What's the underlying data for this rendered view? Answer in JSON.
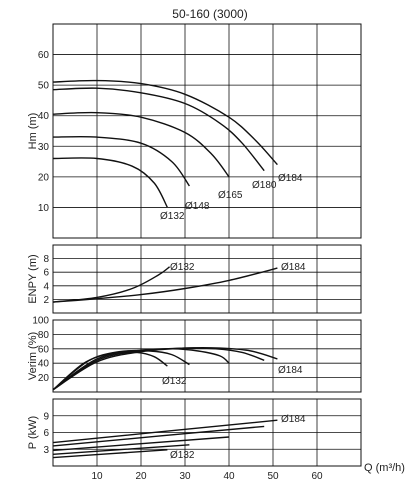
{
  "chart_data": {
    "type": "line",
    "title": "50-160 (3000)",
    "x_label": "Q (m³/h)",
    "x_ticks": [
      "10",
      "20",
      "30",
      "40",
      "50",
      "60"
    ],
    "xlim": [
      0,
      70
    ],
    "panels": [
      {
        "id": "head",
        "ylabel": "Hm (m)",
        "ylim": [
          0,
          70
        ],
        "yticks": [
          10,
          20,
          30,
          40,
          50,
          60
        ],
        "series": [
          {
            "name": "Ø184",
            "x": [
              0,
              10,
              20,
              30,
              40,
              46,
              51
            ],
            "y": [
              51,
              51.5,
              50.5,
              47,
              39.5,
              32,
              24
            ]
          },
          {
            "name": "Ø180",
            "x": [
              0,
              10,
              20,
              30,
              38,
              43,
              48
            ],
            "y": [
              48.5,
              49,
              47.5,
              44,
              37.5,
              31,
              22
            ]
          },
          {
            "name": "Ø165",
            "x": [
              0,
              10,
              20,
              30,
              36,
              40
            ],
            "y": [
              40.5,
              41,
              39.5,
              34.5,
              27.5,
              20
            ]
          },
          {
            "name": "Ø148",
            "x": [
              0,
              10,
              20,
              27,
              31
            ],
            "y": [
              33,
              33,
              31,
              25,
              17
            ]
          },
          {
            "name": "Ø132",
            "x": [
              0,
              10,
              18,
              23,
              26
            ],
            "y": [
              26,
              26,
              23.5,
              18,
              10
            ]
          }
        ]
      },
      {
        "id": "npsh",
        "ylabel": "ENPY (m)",
        "ylim": [
          0,
          10
        ],
        "yticks": [
          2,
          4,
          6,
          8
        ],
        "series": [
          {
            "name": "Ø132",
            "x": [
              0,
              10,
              18,
              24,
              26.5
            ],
            "y": [
              1.6,
              2.3,
              3.6,
              5.6,
              6.8
            ]
          },
          {
            "name": "Ø184",
            "x": [
              0,
              10,
              20,
              30,
              40,
              51
            ],
            "y": [
              1.6,
              2.1,
              2.7,
              3.6,
              4.8,
              6.6
            ]
          }
        ]
      },
      {
        "id": "efficiency",
        "ylabel": "Verim (%)",
        "ylim": [
          0,
          100
        ],
        "yticks": [
          20,
          40,
          60,
          80,
          100
        ],
        "series": [
          {
            "name": "Ø184",
            "x": [
              0,
              10,
              20,
              30,
              38,
              45,
              51
            ],
            "y": [
              3,
              42,
              56,
              61,
              61,
              57,
              46
            ]
          },
          {
            "name": "Ø180",
            "x": [
              0,
              10,
              20,
              30,
              37,
              43,
              48
            ],
            "y": [
              3,
              44,
              57,
              61,
              60,
              55,
              44
            ]
          },
          {
            "name": "Ø165",
            "x": [
              0,
              10,
              20,
              27,
              33,
              38,
              40
            ],
            "y": [
              3,
              46,
              58,
              60,
              57,
              50,
              40
            ]
          },
          {
            "name": "Ø148",
            "x": [
              0,
              8,
              15,
              22,
              27,
              31
            ],
            "y": [
              3,
              43,
              56,
              57,
              52,
              38
            ]
          },
          {
            "name": "Ø132",
            "x": [
              0,
              7,
              13,
              19,
              23,
              26
            ],
            "y": [
              3,
              40,
              53,
              55,
              49,
              36
            ]
          }
        ]
      },
      {
        "id": "power",
        "ylabel": "P (kW)",
        "ylim": [
          0,
          12
        ],
        "yticks": [
          3,
          6,
          9
        ],
        "series": [
          {
            "name": "Ø184",
            "x": [
              0,
              51
            ],
            "y": [
              4.2,
              8.2
            ]
          },
          {
            "name": "Ø180",
            "x": [
              0,
              48
            ],
            "y": [
              3.6,
              7.1
            ]
          },
          {
            "name": "Ø165",
            "x": [
              0,
              40
            ],
            "y": [
              2.8,
              5.2
            ]
          },
          {
            "name": "Ø148",
            "x": [
              0,
              31
            ],
            "y": [
              2.1,
              3.8
            ]
          },
          {
            "name": "Ø132",
            "x": [
              0,
              26
            ],
            "y": [
              1.5,
              2.9
            ]
          }
        ]
      }
    ],
    "curve_labels": {
      "head": [
        "Ø132",
        "Ø148",
        "Ø165",
        "Ø180",
        "Ø184"
      ],
      "npsh": [
        "Ø132",
        "Ø184"
      ],
      "efficiency": [
        "Ø132",
        "Ø184"
      ],
      "power": [
        "Ø184",
        "Ø132"
      ]
    }
  }
}
